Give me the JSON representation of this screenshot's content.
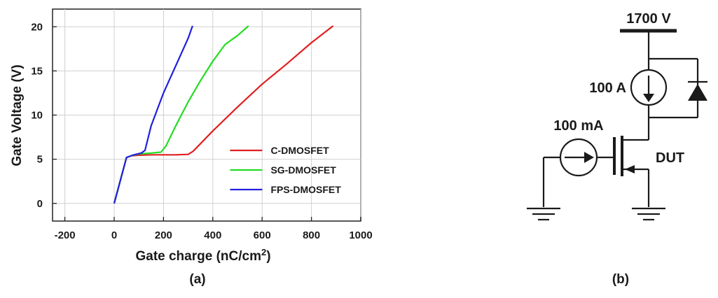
{
  "chart_data": {
    "type": "line",
    "xlabel": "Gate charge (nC/cm",
    "xlabel_sup": "2",
    "xlabel_tail": ")",
    "ylabel": "Gate Voltage (V)",
    "xlim": [
      -250,
      1000
    ],
    "ylim": [
      -2,
      22
    ],
    "x_ticks": [
      -200,
      0,
      200,
      400,
      600,
      800,
      1000
    ],
    "y_ticks": [
      0,
      5,
      10,
      15,
      20
    ],
    "grid": true,
    "legend_position": "lower-right",
    "series": [
      {
        "name": "C-DMOSFET",
        "color": "#e02020",
        "x": [
          0,
          50,
          70,
          100,
          150,
          200,
          250,
          300,
          320,
          400,
          500,
          600,
          700,
          800,
          888
        ],
        "y": [
          0,
          5.2,
          5.4,
          5.45,
          5.5,
          5.5,
          5.5,
          5.55,
          5.9,
          8.2,
          10.9,
          13.5,
          15.8,
          18.2,
          20.1
        ]
      },
      {
        "name": "SG-DMOSFET",
        "color": "#22dd22",
        "x": [
          0,
          50,
          70,
          100,
          150,
          190,
          210,
          250,
          300,
          350,
          400,
          450,
          500,
          545
        ],
        "y": [
          0,
          5.2,
          5.4,
          5.6,
          5.7,
          5.8,
          6.5,
          8.8,
          11.5,
          13.9,
          16.1,
          18.0,
          19.0,
          20.1
        ]
      },
      {
        "name": "FPS-DMOSFET",
        "color": "#2020dd",
        "x": [
          0,
          50,
          80,
          110,
          125,
          150,
          200,
          250,
          300,
          318
        ],
        "y": [
          0,
          5.2,
          5.5,
          5.7,
          6.0,
          8.8,
          12.5,
          15.6,
          18.7,
          20.1
        ]
      }
    ]
  },
  "panel_labels": {
    "a": "(a)",
    "b": "(b)"
  },
  "circuit": {
    "supply_voltage": "1700 V",
    "current_source": "100 A",
    "gate_current": "100 mA",
    "device": "DUT"
  }
}
